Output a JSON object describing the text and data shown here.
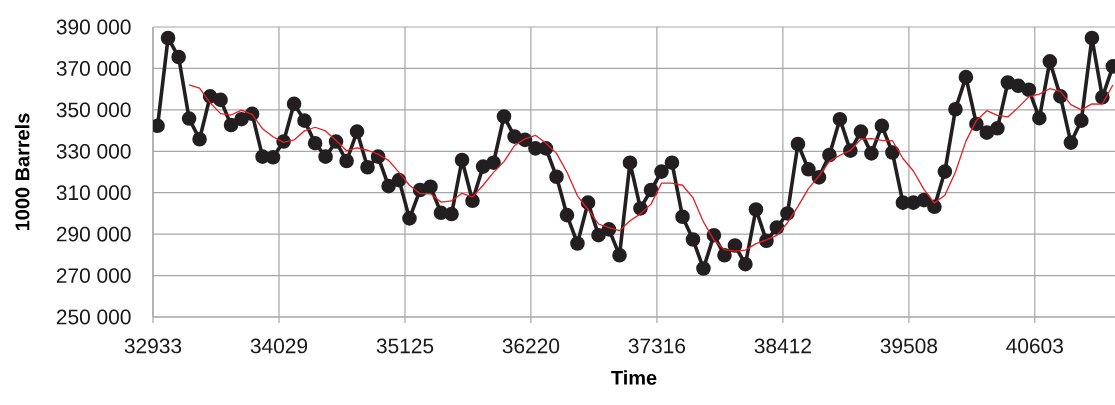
{
  "chart_data": {
    "type": "line",
    "xlabel": "Time",
    "ylabel": "1000 Barrels",
    "x": [
      32973,
      33064,
      33156,
      33247,
      33338,
      33430,
      33521,
      33612,
      33703,
      33795,
      33886,
      33977,
      34069,
      34160,
      34251,
      34343,
      34434,
      34525,
      34617,
      34708,
      34799,
      34891,
      34982,
      35073,
      35164,
      35256,
      35347,
      35438,
      35530,
      35621,
      35712,
      35804,
      35895,
      35986,
      36078,
      36169,
      36260,
      36351,
      36443,
      36534,
      36625,
      36717,
      36808,
      36899,
      36991,
      37082,
      37173,
      37265,
      37356,
      37447,
      37539,
      37630,
      37721,
      37812,
      37904,
      37995,
      38086,
      38178,
      38269,
      38360,
      38452,
      38543,
      38634,
      38726,
      38817,
      38908,
      38999,
      39091,
      39182,
      39273,
      39365,
      39456,
      39547,
      39639,
      39730,
      39821,
      39913,
      40004,
      40095,
      40186,
      40278,
      40369,
      40460,
      40552,
      40643,
      40734,
      40826,
      40917,
      41008,
      41100,
      41191,
      41282
    ],
    "series": [
      {
        "color": "#231f20",
        "marker": "circle",
        "line_style": "solid",
        "values": [
          342300,
          384700,
          375500,
          345800,
          335800,
          356500,
          354800,
          342700,
          345500,
          348100,
          327400,
          327100,
          334700,
          352900,
          344800,
          333900,
          327400,
          334700,
          325300,
          339500,
          322300,
          327400,
          313200,
          316100,
          297600,
          311300,
          312900,
          300300,
          299700,
          325800,
          306100,
          322600,
          324500,
          346800,
          337100,
          335500,
          331400,
          331400,
          317700,
          299200,
          285500,
          305200,
          289500,
          292300,
          279800,
          324500,
          302400,
          311300,
          320200,
          324500,
          298400,
          287400,
          273400,
          289500,
          279800,
          284500,
          275500,
          301900,
          286800,
          293200,
          300000,
          333500,
          321300,
          317400,
          328200,
          345500,
          330300,
          339500,
          329000,
          342300,
          329400,
          305200,
          305200,
          306400,
          303200,
          320200,
          350300,
          365800,
          343200,
          339000,
          341100,
          363200,
          361600,
          359700,
          346000,
          373400,
          356500,
          334200,
          344800,
          384700,
          356100,
          371000
        ]
      },
      {
        "color": "#e31e24",
        "marker": "none",
        "line_style": "solid",
        "values": [
          null,
          null,
          null,
          362100,
          360500,
          353400,
          348200,
          347500,
          349900,
          347800,
          340900,
          337000,
          334300,
          335500,
          339900,
          341600,
          339800,
          335200,
          330300,
          331700,
          330500,
          328600,
          325600,
          319800,
          313600,
          309600,
          309500,
          305500,
          306100,
          309700,
          308000,
          313600,
          319800,
          325000,
          332800,
          336000,
          337700,
          333900,
          329000,
          319900,
          308500,
          301900,
          294900,
          293100,
          291700,
          296500,
          299800,
          304500,
          314600,
          314600,
          313600,
          307600,
          295900,
          287200,
          282500,
          281800,
          282300,
          285400,
          287200,
          289400,
          295500,
          303400,
          312000,
          318100,
          325100,
          328100,
          330400,
          335900,
          336100,
          335300,
          335100,
          326500,
          320500,
          311600,
          305000,
          308800,
          320000,
          334900,
          344900,
          349600,
          347300,
          346600,
          351200,
          356400,
          357600,
          360200,
          358900,
          352500,
          350000,
          352900,
          352800,
          362000
        ]
      }
    ],
    "xlim": [
      32933,
      41301
    ],
    "xticks": [
      32933,
      34029,
      35125,
      36220,
      37316,
      38412,
      39508,
      40603
    ],
    "ylim": [
      250000,
      390000
    ],
    "yticks": [
      {
        "value": 250000,
        "label": "250 000"
      },
      {
        "value": 270000,
        "label": "270 000"
      },
      {
        "value": 290000,
        "label": "290 000"
      },
      {
        "value": 310000,
        "label": "310 000"
      },
      {
        "value": 330000,
        "label": "330 000"
      },
      {
        "value": 350000,
        "label": "350 000"
      },
      {
        "value": 370000,
        "label": "370 000"
      },
      {
        "value": 390000,
        "label": "390 000"
      }
    ],
    "grid": true
  }
}
